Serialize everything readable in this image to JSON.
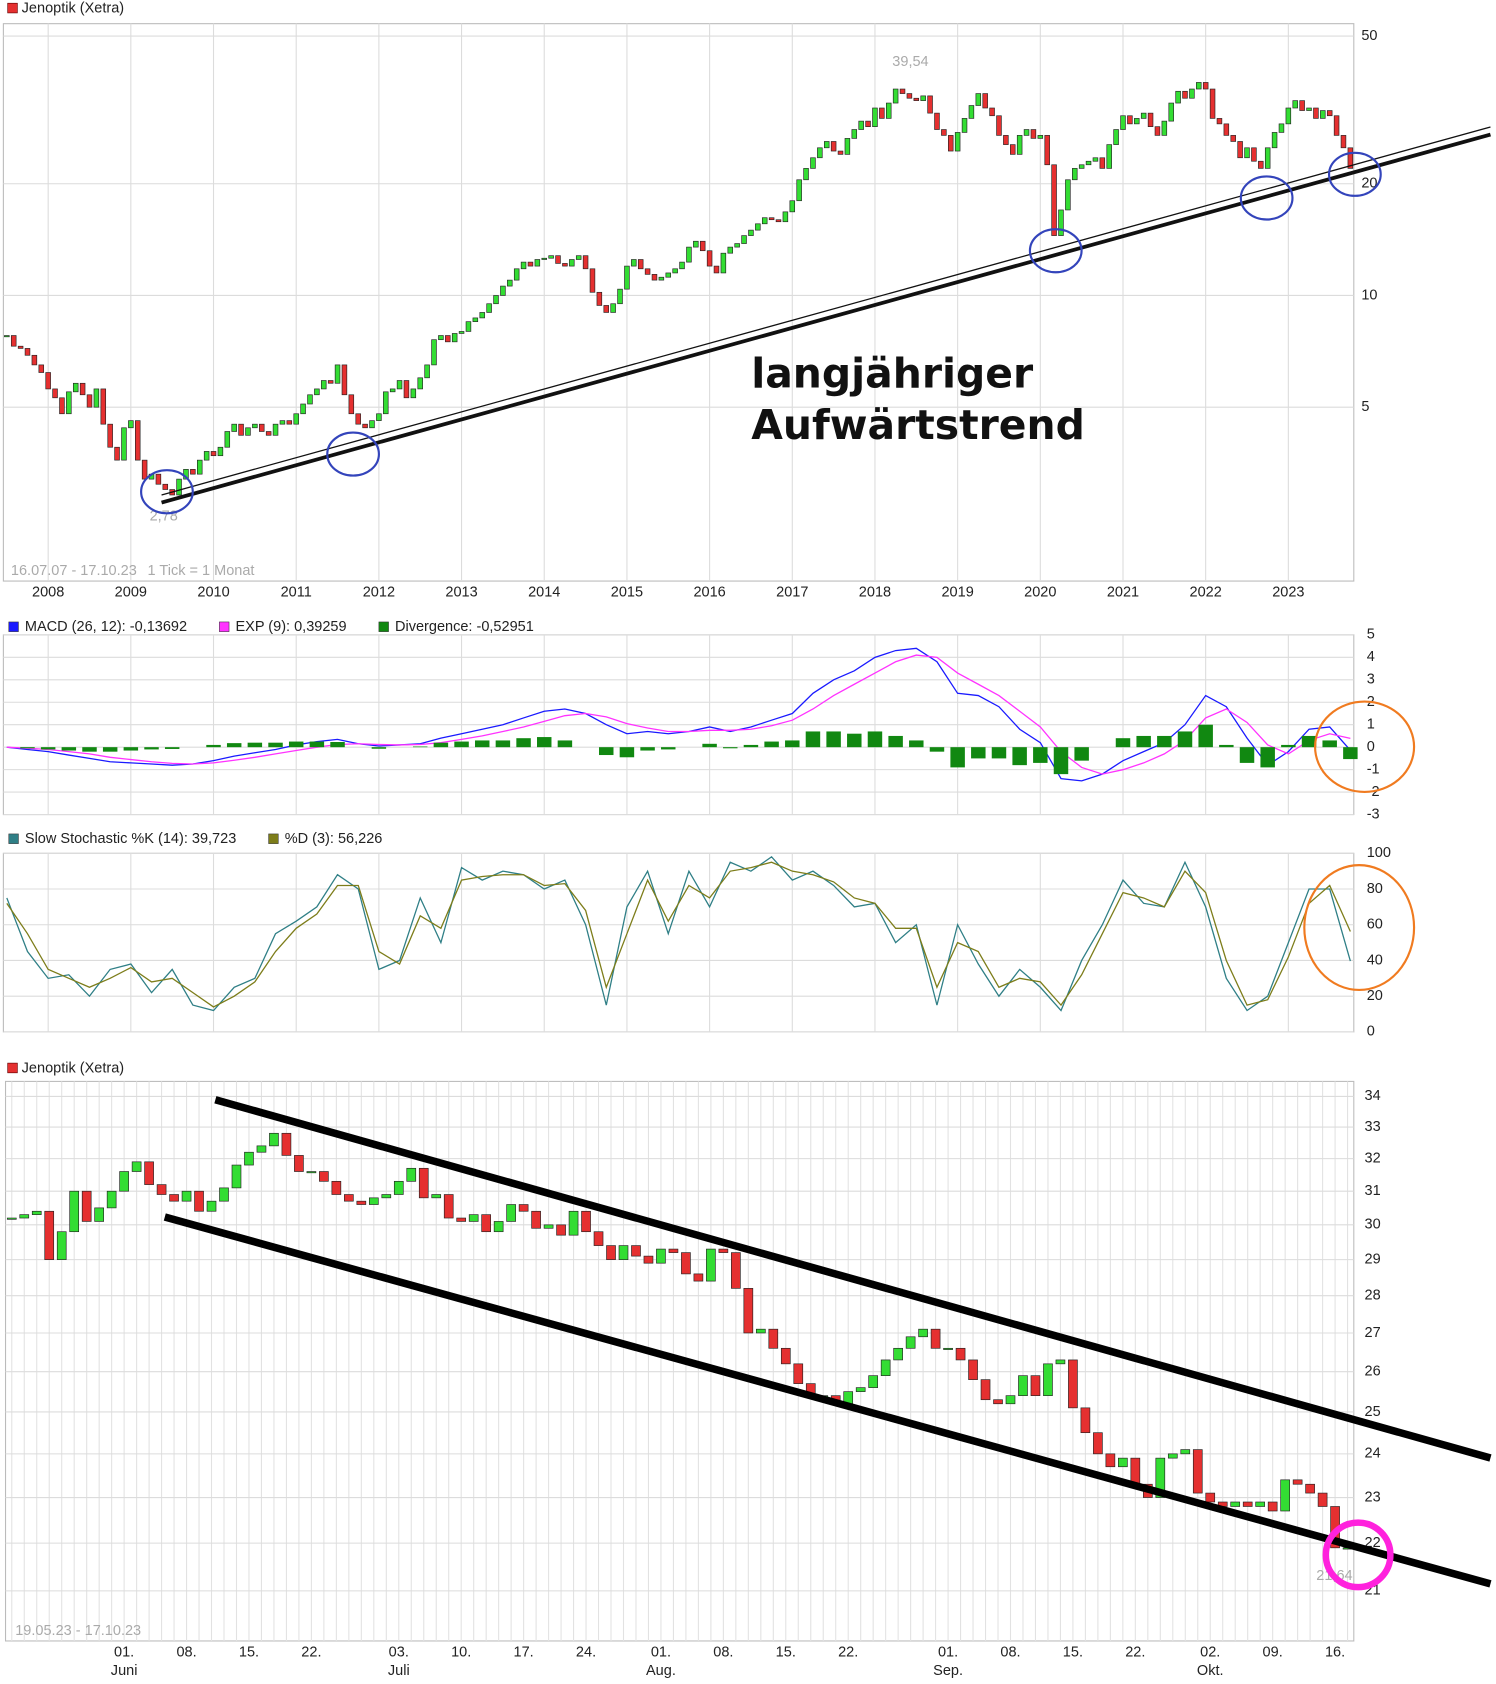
{
  "chart_data": [
    {
      "type": "candlestick",
      "title": "Jenoptik (Xetra)",
      "subtitle": "16.07.07 - 17.10.23",
      "note": "1 Tick = 1 Monat",
      "log_scale": true,
      "grid": true,
      "ylim": [
        1.7,
        54
      ],
      "yticks": [
        5,
        10,
        20,
        50
      ],
      "colors": {
        "up": "#33dd33",
        "down": "#e53030"
      },
      "annotations": [
        "39,54",
        "2,78",
        "langjähriger",
        "Aufwärtstrend"
      ],
      "categories": [
        null,
        null,
        null,
        null,
        null,
        null,
        "2008",
        null,
        null,
        null,
        null,
        null,
        null,
        null,
        null,
        null,
        null,
        null,
        "2009",
        null,
        null,
        null,
        null,
        null,
        null,
        null,
        null,
        null,
        null,
        null,
        "2010",
        null,
        null,
        null,
        null,
        null,
        null,
        null,
        null,
        null,
        null,
        null,
        "2011",
        null,
        null,
        null,
        null,
        null,
        null,
        null,
        null,
        null,
        null,
        null,
        "2012",
        null,
        null,
        null,
        null,
        null,
        null,
        null,
        null,
        null,
        null,
        null,
        "2013",
        null,
        null,
        null,
        null,
        null,
        null,
        null,
        null,
        null,
        null,
        null,
        "2014",
        null,
        null,
        null,
        null,
        null,
        null,
        null,
        null,
        null,
        null,
        null,
        "2015",
        null,
        null,
        null,
        null,
        null,
        null,
        null,
        null,
        null,
        null,
        null,
        "2016",
        null,
        null,
        null,
        null,
        null,
        null,
        null,
        null,
        null,
        null,
        null,
        "2017",
        null,
        null,
        null,
        null,
        null,
        null,
        null,
        null,
        null,
        null,
        null,
        "2018",
        null,
        null,
        null,
        null,
        null,
        null,
        null,
        null,
        null,
        null,
        null,
        "2019",
        null,
        null,
        null,
        null,
        null,
        null,
        null,
        null,
        null,
        null,
        null,
        "2020",
        null,
        null,
        null,
        null,
        null,
        null,
        null,
        null,
        null,
        null,
        null,
        "2021",
        null,
        null,
        null,
        null,
        null,
        null,
        null,
        null,
        null,
        null,
        null,
        "2022",
        null,
        null,
        null,
        null,
        null,
        null,
        null,
        null,
        null,
        null,
        null,
        "2023",
        null,
        null,
        null,
        null,
        null,
        null,
        null,
        null,
        null
      ],
      "values": [
        7.8,
        7.3,
        7.2,
        6.9,
        6.5,
        6.2,
        5.6,
        5.3,
        4.8,
        5.5,
        5.8,
        5.4,
        5.0,
        5.6,
        4.5,
        3.9,
        3.6,
        4.4,
        4.6,
        3.6,
        3.2,
        3.3,
        3.1,
        3.0,
        2.9,
        3.2,
        3.4,
        3.3,
        3.6,
        3.8,
        3.7,
        3.9,
        4.3,
        4.5,
        4.2,
        4.4,
        4.5,
        4.3,
        4.2,
        4.5,
        4.6,
        4.5,
        4.8,
        5.1,
        5.4,
        5.6,
        5.9,
        5.8,
        6.5,
        5.4,
        4.8,
        4.5,
        4.4,
        4.6,
        4.8,
        5.5,
        5.6,
        5.9,
        5.3,
        5.6,
        6.0,
        6.5,
        7.6,
        7.8,
        7.5,
        7.9,
        8.0,
        8.5,
        8.7,
        9.0,
        9.5,
        10.0,
        10.6,
        11.0,
        11.8,
        12.3,
        12.0,
        12.5,
        12.6,
        12.8,
        12.2,
        12.0,
        12.5,
        12.8,
        11.8,
        10.2,
        9.4,
        9.0,
        9.5,
        10.4,
        12.0,
        12.5,
        11.8,
        11.4,
        11.0,
        11.2,
        11.5,
        11.8,
        12.3,
        13.5,
        14.0,
        13.2,
        12.0,
        11.5,
        13.0,
        13.5,
        13.8,
        14.5,
        15.0,
        15.6,
        16.2,
        16.0,
        15.8,
        16.8,
        18.0,
        20.5,
        22.0,
        23.5,
        25.0,
        26.0,
        24.5,
        24.0,
        26.5,
        28.0,
        29.5,
        28.5,
        32.0,
        30.0,
        33.0,
        36.0,
        35.0,
        34.0,
        33.5,
        34.5,
        31.0,
        28.0,
        27.0,
        24.5,
        27.5,
        30.0,
        32.5,
        35.0,
        32.0,
        30.5,
        27.0,
        25.5,
        24.0,
        27.0,
        28.0,
        26.5,
        27.0,
        22.5,
        14.5,
        17.0,
        20.5,
        22.0,
        22.5,
        23.0,
        23.5,
        22.0,
        25.5,
        28.0,
        30.5,
        29.0,
        30.0,
        31.0,
        28.5,
        27.0,
        29.5,
        33.0,
        35.5,
        34.0,
        36.0,
        37.5,
        36.0,
        30.0,
        29.0,
        27.0,
        26.0,
        23.5,
        25.0,
        23.0,
        22.0,
        25.0,
        27.5,
        29.0,
        32.0,
        33.5,
        31.5,
        32.0,
        30.0,
        31.5,
        30.5,
        27.0,
        25.0,
        22.0
      ]
    },
    {
      "type": "line",
      "ylim": [
        -3,
        5
      ],
      "yticks": [
        -3,
        -2,
        -1,
        0,
        1,
        2,
        3,
        4,
        5
      ],
      "grid": true,
      "series": [
        {
          "name": "MACD (26, 12): -0,13692",
          "color": "#1a1aff",
          "values": [
            0.0,
            -0.1,
            -0.2,
            -0.35,
            -0.5,
            -0.65,
            -0.7,
            -0.75,
            -0.8,
            -0.75,
            -0.6,
            -0.4,
            -0.25,
            -0.1,
            0.1,
            0.25,
            0.35,
            0.15,
            0.05,
            0.1,
            0.15,
            0.4,
            0.6,
            0.8,
            1.0,
            1.3,
            1.6,
            1.7,
            1.5,
            1.0,
            0.6,
            0.7,
            0.6,
            0.7,
            0.9,
            0.7,
            0.9,
            1.2,
            1.5,
            2.4,
            3.0,
            3.4,
            4.0,
            4.3,
            4.4,
            3.8,
            2.4,
            2.3,
            1.8,
            0.8,
            0.2,
            -1.4,
            -1.5,
            -1.2,
            -0.6,
            -0.2,
            0.2,
            1.0,
            2.3,
            1.8,
            0.4,
            -0.8,
            -0.2,
            0.8,
            0.9,
            -0.14
          ]
        },
        {
          "name": "EXP (9): 0,39259",
          "color": "#ff33ff",
          "values": [
            0.0,
            -0.05,
            -0.1,
            -0.2,
            -0.3,
            -0.45,
            -0.55,
            -0.65,
            -0.72,
            -0.75,
            -0.7,
            -0.58,
            -0.45,
            -0.3,
            -0.15,
            0.0,
            0.12,
            0.15,
            0.12,
            0.1,
            0.12,
            0.2,
            0.35,
            0.5,
            0.7,
            0.9,
            1.15,
            1.4,
            1.5,
            1.35,
            1.05,
            0.85,
            0.7,
            0.7,
            0.75,
            0.75,
            0.8,
            0.95,
            1.2,
            1.7,
            2.3,
            2.8,
            3.3,
            3.8,
            4.1,
            4.0,
            3.3,
            2.8,
            2.3,
            1.6,
            0.9,
            -0.2,
            -0.9,
            -1.2,
            -1.0,
            -0.7,
            -0.3,
            0.3,
            1.3,
            1.7,
            1.1,
            0.1,
            -0.3,
            0.3,
            0.6,
            0.39
          ]
        },
        {
          "name": "Divergence: -0,52951",
          "color": "#118811",
          "type": "bar",
          "values": [
            0.0,
            -0.05,
            -0.1,
            -0.15,
            -0.2,
            -0.2,
            -0.15,
            -0.1,
            -0.08,
            0.0,
            0.1,
            0.18,
            0.2,
            0.2,
            0.25,
            0.25,
            0.23,
            0.0,
            -0.07,
            0.0,
            0.03,
            0.2,
            0.25,
            0.3,
            0.3,
            0.4,
            0.45,
            0.3,
            0.0,
            -0.35,
            -0.45,
            -0.15,
            -0.1,
            0.0,
            0.15,
            -0.05,
            0.1,
            0.25,
            0.3,
            0.7,
            0.7,
            0.6,
            0.7,
            0.5,
            0.3,
            -0.2,
            -0.9,
            -0.5,
            -0.5,
            -0.8,
            -0.7,
            -1.2,
            -0.6,
            0.0,
            0.4,
            0.5,
            0.5,
            0.7,
            1.0,
            0.1,
            -0.7,
            -0.9,
            0.1,
            0.5,
            0.3,
            -0.53
          ]
        }
      ]
    },
    {
      "type": "line",
      "ylim": [
        0,
        100
      ],
      "yticks": [
        0,
        20,
        40,
        60,
        80,
        100
      ],
      "grid": true,
      "series": [
        {
          "name": "Slow Stochastic %K (14): 39,723",
          "color": "#2f7f86",
          "values": [
            75,
            45,
            30,
            32,
            20,
            35,
            38,
            22,
            35,
            15,
            12,
            25,
            30,
            55,
            62,
            70,
            88,
            80,
            35,
            40,
            75,
            50,
            92,
            85,
            90,
            88,
            80,
            85,
            60,
            15,
            70,
            90,
            55,
            90,
            70,
            95,
            90,
            98,
            85,
            90,
            82,
            70,
            72,
            50,
            60,
            15,
            60,
            38,
            20,
            35,
            25,
            12,
            40,
            60,
            85,
            72,
            70,
            95,
            70,
            30,
            12,
            20,
            50,
            80,
            80,
            39.723
          ]
        },
        {
          "name": "%D (3): 56,226",
          "color": "#7d7d1a",
          "values": [
            72,
            55,
            35,
            30,
            25,
            30,
            36,
            28,
            30,
            22,
            14,
            20,
            28,
            45,
            58,
            66,
            82,
            82,
            45,
            38,
            65,
            58,
            85,
            87,
            88,
            88,
            82,
            83,
            68,
            25,
            55,
            85,
            62,
            82,
            75,
            90,
            92,
            95,
            90,
            88,
            84,
            75,
            72,
            58,
            58,
            25,
            50,
            45,
            25,
            30,
            28,
            15,
            32,
            55,
            78,
            75,
            70,
            90,
            78,
            40,
            15,
            18,
            42,
            72,
            82,
            56.226
          ]
        }
      ]
    },
    {
      "type": "candlestick",
      "title": "Jenoptik (Xetra)",
      "subtitle": "19.05.23 - 17.10.23",
      "log_scale": true,
      "grid": true,
      "ylim": [
        20,
        34.5
      ],
      "yticks": [
        21,
        22,
        23,
        24,
        25,
        26,
        27,
        28,
        29,
        30,
        31,
        32,
        33,
        34
      ],
      "colors": {
        "up": "#33dd33",
        "down": "#e53030"
      },
      "annotations": [
        "21,64"
      ],
      "categories": [
        null,
        null,
        null,
        null,
        null,
        null,
        null,
        null,
        null,
        "01.",
        null,
        null,
        null,
        null,
        "08.",
        null,
        null,
        null,
        null,
        "15.",
        null,
        null,
        null,
        null,
        "22.",
        null,
        null,
        null,
        null,
        null,
        null,
        "03.",
        null,
        null,
        null,
        null,
        "10.",
        null,
        null,
        null,
        null,
        "17.",
        null,
        null,
        null,
        null,
        "24.",
        null,
        null,
        null,
        null,
        null,
        "01.",
        null,
        null,
        null,
        null,
        "08.",
        null,
        null,
        null,
        null,
        "15.",
        null,
        null,
        null,
        null,
        "22.",
        null,
        null,
        null,
        null,
        null,
        null,
        null,
        "01.",
        null,
        null,
        null,
        null,
        "08.",
        null,
        null,
        null,
        null,
        "15.",
        null,
        null,
        null,
        null,
        "22.",
        null,
        null,
        null,
        null,
        null,
        "02.",
        null,
        null,
        null,
        null,
        "09.",
        null,
        null,
        null,
        null,
        "16.",
        null
      ],
      "months": [
        null,
        null,
        null,
        null,
        null,
        null,
        null,
        null,
        null,
        "Juni",
        null,
        null,
        null,
        null,
        null,
        null,
        null,
        null,
        null,
        null,
        null,
        null,
        null,
        null,
        null,
        null,
        null,
        null,
        null,
        null,
        null,
        "Juli",
        null,
        null,
        null,
        null,
        null,
        null,
        null,
        null,
        null,
        null,
        null,
        null,
        null,
        null,
        null,
        null,
        null,
        null,
        null,
        null,
        "Aug.",
        null,
        null,
        null,
        null,
        null,
        null,
        null,
        null,
        null,
        null,
        null,
        null,
        null,
        null,
        null,
        null,
        null,
        null,
        null,
        null,
        null,
        null,
        "Sep.",
        null,
        null,
        null,
        null,
        null,
        null,
        null,
        null,
        null,
        null,
        null,
        null,
        null,
        null,
        null,
        null,
        null,
        null,
        null,
        null,
        "Okt.",
        null,
        null,
        null,
        null,
        null,
        null,
        null,
        null,
        null,
        null,
        null
      ],
      "values": [
        30.2,
        30.3,
        30.4,
        29.0,
        29.8,
        31.0,
        30.1,
        30.5,
        31.0,
        31.6,
        31.9,
        31.2,
        30.9,
        30.7,
        31.0,
        30.4,
        30.7,
        31.1,
        31.8,
        32.2,
        32.4,
        32.8,
        32.1,
        31.6,
        31.6,
        31.3,
        30.9,
        30.7,
        30.6,
        30.8,
        30.9,
        31.3,
        31.7,
        30.8,
        30.9,
        30.2,
        30.1,
        30.3,
        29.8,
        30.1,
        30.6,
        30.4,
        29.9,
        30.0,
        29.7,
        30.4,
        29.8,
        29.4,
        29.0,
        29.4,
        29.1,
        28.9,
        29.3,
        29.2,
        28.6,
        28.4,
        29.3,
        29.2,
        28.2,
        27.0,
        27.1,
        26.6,
        26.2,
        25.7,
        25.4,
        25.4,
        25.2,
        25.5,
        25.6,
        25.9,
        26.3,
        26.6,
        26.9,
        27.1,
        26.6,
        26.6,
        26.3,
        25.8,
        25.3,
        25.2,
        25.4,
        25.9,
        25.4,
        26.2,
        26.3,
        25.1,
        24.5,
        24.0,
        23.7,
        23.9,
        23.3,
        23.0,
        23.9,
        24.0,
        24.1,
        23.1,
        22.9,
        22.8,
        22.9,
        22.8,
        22.9,
        22.7,
        23.4,
        23.3,
        23.1,
        22.8,
        21.9,
        21.9
      ]
    }
  ]
}
